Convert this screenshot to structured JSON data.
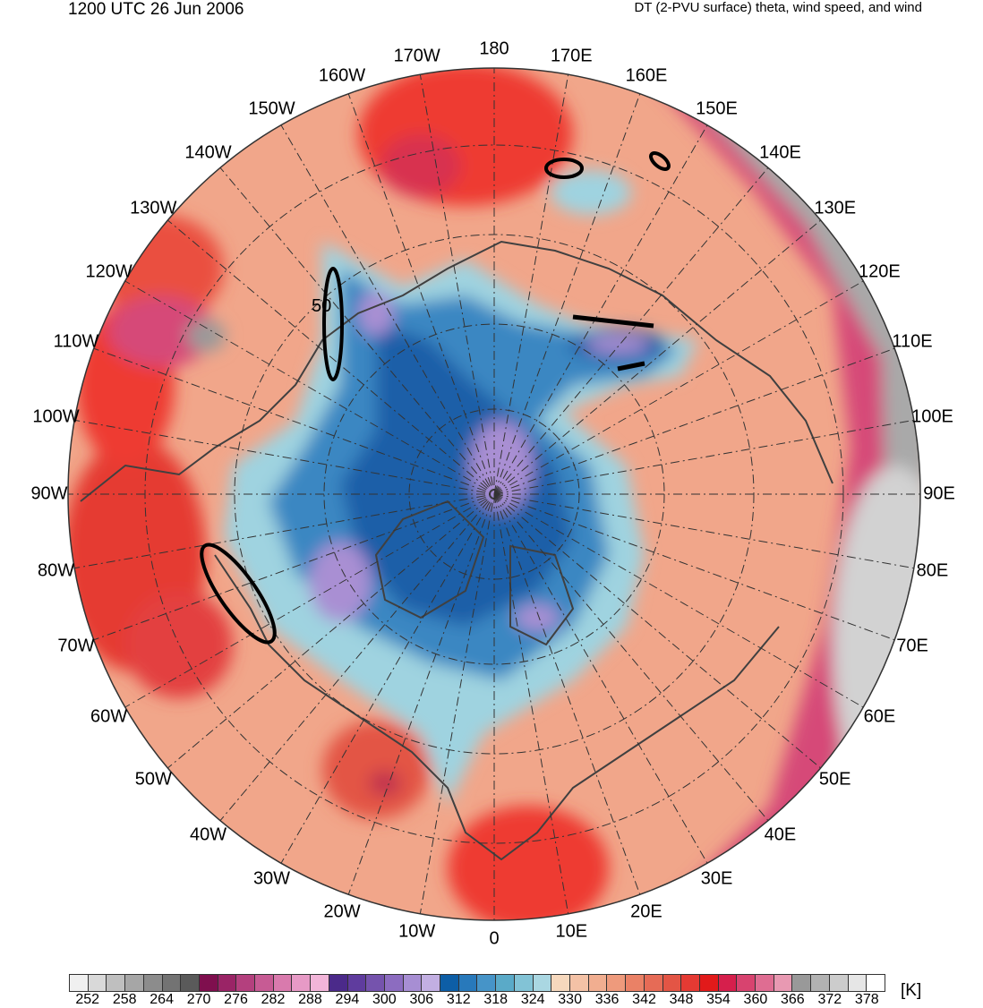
{
  "header": {
    "left_title": "1200 UTC 26 Jun 2006",
    "right_title": "DT (2-PVU surface) theta, wind speed, and wind"
  },
  "map": {
    "projection": "north-polar-stereographic",
    "contour_label": "50",
    "lon_labels": [
      "180",
      "170E",
      "160E",
      "150E",
      "140E",
      "130E",
      "120E",
      "110E",
      "100E",
      "90E",
      "80E",
      "70E",
      "60E",
      "50E",
      "40E",
      "30E",
      "20E",
      "10E",
      "0",
      "10W",
      "20W",
      "30W",
      "40W",
      "50W",
      "60W",
      "70W",
      "80W",
      "90W",
      "100W",
      "110W",
      "120W",
      "130W",
      "140W",
      "150W",
      "160W",
      "170W"
    ],
    "fill_colors": {
      "ocean_warm": "#f1a68a",
      "warm_red": "#ee3a30",
      "magenta": "#d64a78",
      "grey": "#a9a9a9",
      "light_blue": "#9fd3e0",
      "mid_blue": "#3b87c2",
      "dark_blue": "#1b5ea8",
      "lavender": "#a98fd3",
      "coast": "#404040"
    }
  },
  "colorbar": {
    "unit": "[K]",
    "colors": [
      "#f0f0f0",
      "#d9d9d9",
      "#bfbfbf",
      "#a6a6a6",
      "#8c8c8c",
      "#737373",
      "#5a5a5a",
      "#7f0f4e",
      "#9a2466",
      "#b4407e",
      "#c75b94",
      "#d97aad",
      "#e79ac6",
      "#f2b5d9",
      "#4b2a8a",
      "#5f3c9e",
      "#7553ad",
      "#8c6cc0",
      "#a78ed3",
      "#c2afe2",
      "#0d5ea6",
      "#2879bb",
      "#4694c8",
      "#5aaac8",
      "#82c3d6",
      "#aad7e2",
      "#f6d8bd",
      "#f4c2a6",
      "#f1ae90",
      "#ee9a7c",
      "#ea8166",
      "#e66b56",
      "#e35545",
      "#e53a33",
      "#e21a1a",
      "#d61f4c",
      "#d8436f",
      "#df6d92",
      "#e899b2",
      "#999999",
      "#b2b2b2",
      "#cccccc",
      "#e6e6e6",
      "#ffffff"
    ],
    "ticks": [
      "252",
      "258",
      "264",
      "270",
      "276",
      "282",
      "288",
      "294",
      "300",
      "306",
      "312",
      "318",
      "324",
      "330",
      "336",
      "342",
      "348",
      "354",
      "360",
      "366",
      "372",
      "378"
    ]
  }
}
